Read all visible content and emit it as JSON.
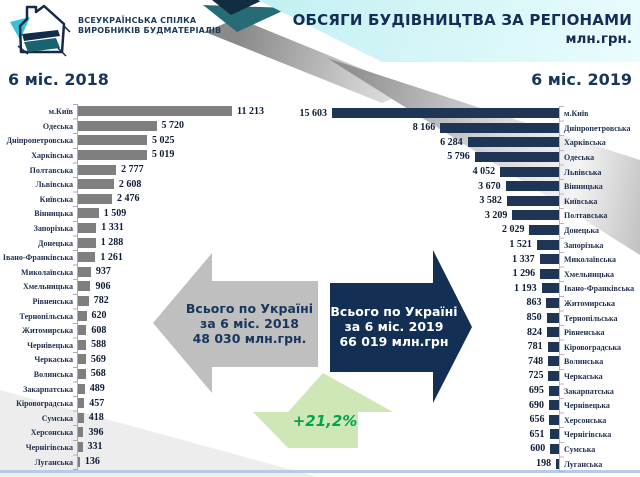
{
  "header": {
    "logo": {
      "line1": "ВСЕУКРАЇНСЬКА СПІЛКА",
      "line2": "ВИРОБНИКІВ БУДМАТЕРІАЛІВ"
    },
    "banner": {
      "title": "ОБСЯГИ БУДІВНИЦТВА ЗА РЕГІОНАМИ",
      "subtitle": "млн.грн."
    }
  },
  "section_titles": {
    "left": "6 міс. 2018",
    "right": "6 міс. 2019"
  },
  "totals": {
    "y2018": {
      "line1": "Всього по Україні",
      "line2": "за 6 міс. 2018",
      "line3": "48 030 млн.грн."
    },
    "y2019": {
      "line1": "Всього по Україні",
      "line2": "за 6 міс. 2019",
      "line3": "66 019 млн.грн"
    },
    "growth": "+21,2%"
  },
  "colors": {
    "navy": "#17365d",
    "bar_gray": "#7f7f7f",
    "bar_navy": "#1f3556",
    "arrow_gray": "#bfbfbf",
    "arrow_navy": "#142f54",
    "growth_green_fill": "#cfe6b6",
    "growth_green_text": "#00a44f",
    "banner_cyan": "#a9e6ea"
  },
  "chart_data": [
    {
      "type": "bar",
      "orientation": "horizontal",
      "title": "6 міс. 2018",
      "unit": "млн.грн",
      "bar_color": "#7f7f7f",
      "xlim": [
        0,
        11213
      ],
      "legend": "none",
      "grid": "off",
      "categories": [
        "м.Київ",
        "Одеська",
        "Дніпропетровська",
        "Харківська",
        "Полтавська",
        "Львівська",
        "Київська",
        "Вінницька",
        "Запорізька",
        "Донецька",
        "Івано-Франківська",
        "Миколаївська",
        "Хмельницька",
        "Рівненська",
        "Тернопільська",
        "Житомирська",
        "Чернівецька",
        "Черкаська",
        "Волинська",
        "Закарпатська",
        "Кіровоградська",
        "Сумська",
        "Херсонська",
        "Чернігівська",
        "Луганська"
      ],
      "values": [
        11213,
        5720,
        5025,
        5019,
        2777,
        2608,
        2476,
        1509,
        1331,
        1288,
        1261,
        937,
        906,
        782,
        620,
        608,
        588,
        569,
        568,
        489,
        457,
        418,
        396,
        331,
        136
      ],
      "value_labels": [
        "11 213",
        "5 720",
        "5 025",
        "5 019",
        "2 777",
        "2 608",
        "2 476",
        "1 509",
        "1 331",
        "1 288",
        "1 261",
        "937",
        "906",
        "782",
        "620",
        "608",
        "588",
        "569",
        "568",
        "489",
        "457",
        "418",
        "396",
        "331",
        "136"
      ]
    },
    {
      "type": "bar",
      "orientation": "horizontal",
      "title": "6 міс. 2019",
      "unit": "млн.грн",
      "bar_color": "#1f3556",
      "xlim": [
        0,
        15603
      ],
      "legend": "none",
      "grid": "off",
      "categories": [
        "м.Київ",
        "Дніпропетровська",
        "Харківська",
        "Одеська",
        "Львівська",
        "Вінницька",
        "Київська",
        "Полтавська",
        "Донецька",
        "Запорізька",
        "Миколаївська",
        "Хмельницька",
        "Івано-Франківська",
        "Житомирська",
        "Тернопільська",
        "Рівненська",
        "Кіровоградська",
        "Волинська",
        "Черкаська",
        "Закарпатська",
        "Чернівецька",
        "Херсонська",
        "Чернігівська",
        "Сумська",
        "Луганська"
      ],
      "values": [
        15603,
        8166,
        6284,
        5796,
        4052,
        3670,
        3582,
        3209,
        2029,
        1521,
        1337,
        1296,
        1193,
        863,
        850,
        824,
        781,
        748,
        725,
        695,
        690,
        656,
        651,
        600,
        198
      ],
      "value_labels": [
        "15 603",
        "8 166",
        "6 284",
        "5 796",
        "4 052",
        "3 670",
        "3 582",
        "3 209",
        "2 029",
        "1 521",
        "1 337",
        "1 296",
        "1 193",
        "863",
        "850",
        "824",
        "781",
        "748",
        "725",
        "695",
        "690",
        "656",
        "651",
        "600",
        "198"
      ]
    }
  ]
}
